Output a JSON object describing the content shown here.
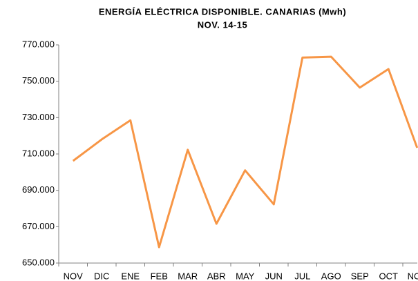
{
  "chart_data": {
    "type": "line",
    "title": "ENERGÍA ELÉCTRICA DISPONIBLE. CANARIAS (Mwh)",
    "subtitle": "NOV. 14-15",
    "categories": [
      "NOV",
      "DIC",
      "ENE",
      "FEB",
      "MAR",
      "ABR",
      "MAY",
      "JUN",
      "JUL",
      "AGO",
      "SEP",
      "OCT",
      "NOV"
    ],
    "series": [
      {
        "name": "Energía eléctrica disponible",
        "color": "#f79646",
        "values": [
          706200,
          718000,
          728500,
          658700,
          712300,
          671600,
          701000,
          682300,
          763000,
          763500,
          746500,
          756700,
          713400
        ]
      }
    ],
    "ylim": [
      650000,
      770000
    ],
    "yticks": [
      {
        "value": 650000,
        "label": "650.000"
      },
      {
        "value": 670000,
        "label": "670.000"
      },
      {
        "value": 690000,
        "label": "690.000"
      },
      {
        "value": 710000,
        "label": "710.000"
      },
      {
        "value": 730000,
        "label": "730.000"
      },
      {
        "value": 750000,
        "label": "750.000"
      },
      {
        "value": 770000,
        "label": "770.000"
      }
    ],
    "grid": false
  }
}
